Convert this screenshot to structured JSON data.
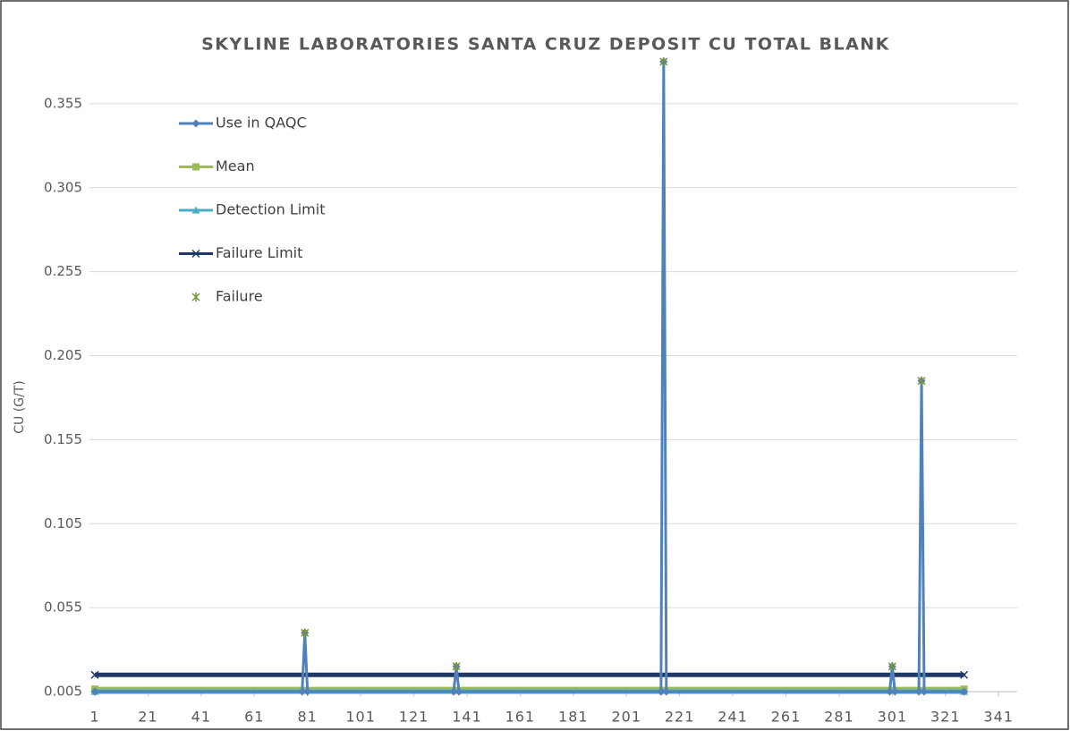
{
  "chart_data": {
    "type": "line",
    "title": "SKYLINE LABORATORIES SANTA CRUZ DEPOSIT CU TOTAL BLANK",
    "y_label": "CU (G/T)",
    "xlim": [
      1,
      348
    ],
    "xticks": [
      1,
      21,
      41,
      61,
      81,
      101,
      121,
      141,
      161,
      181,
      201,
      221,
      241,
      261,
      281,
      301,
      321,
      341
    ],
    "ylim": [
      0.005,
      0.405
    ],
    "yticks": [
      0.005,
      0.055,
      0.105,
      0.155,
      0.205,
      0.255,
      0.305,
      0.355
    ],
    "grid": true,
    "legend": "upper left",
    "series": [
      {
        "name": "Use in QAQC",
        "color": "#4f81bd",
        "marker": "diamond",
        "x": [
          1,
          79,
          80,
          81,
          136,
          137,
          138,
          214,
          215,
          216,
          300,
          301,
          302,
          311,
          312,
          313,
          328
        ],
        "values": [
          0.005,
          0.005,
          0.04,
          0.005,
          0.005,
          0.02,
          0.005,
          0.005,
          0.38,
          0.005,
          0.005,
          0.02,
          0.005,
          0.005,
          0.19,
          0.005,
          0.005
        ]
      },
      {
        "name": "Mean",
        "color": "#9bbb59",
        "marker": "square",
        "x": [
          1,
          328
        ],
        "values": [
          0.0065,
          0.0065
        ]
      },
      {
        "name": "Detection Limit",
        "color": "#4bacc6",
        "marker": "triangle",
        "x": [
          1,
          328
        ],
        "values": [
          0.005,
          0.005
        ]
      },
      {
        "name": "Failure Limit",
        "color": "#1f3864",
        "marker": "x",
        "x": [
          1,
          328
        ],
        "values": [
          0.015,
          0.015
        ]
      },
      {
        "name": "Failure",
        "color": "#77933c",
        "marker": "star",
        "line": false,
        "x": [
          80,
          137,
          215,
          301,
          312
        ],
        "values": [
          0.04,
          0.02,
          0.38,
          0.02,
          0.19
        ]
      }
    ]
  }
}
